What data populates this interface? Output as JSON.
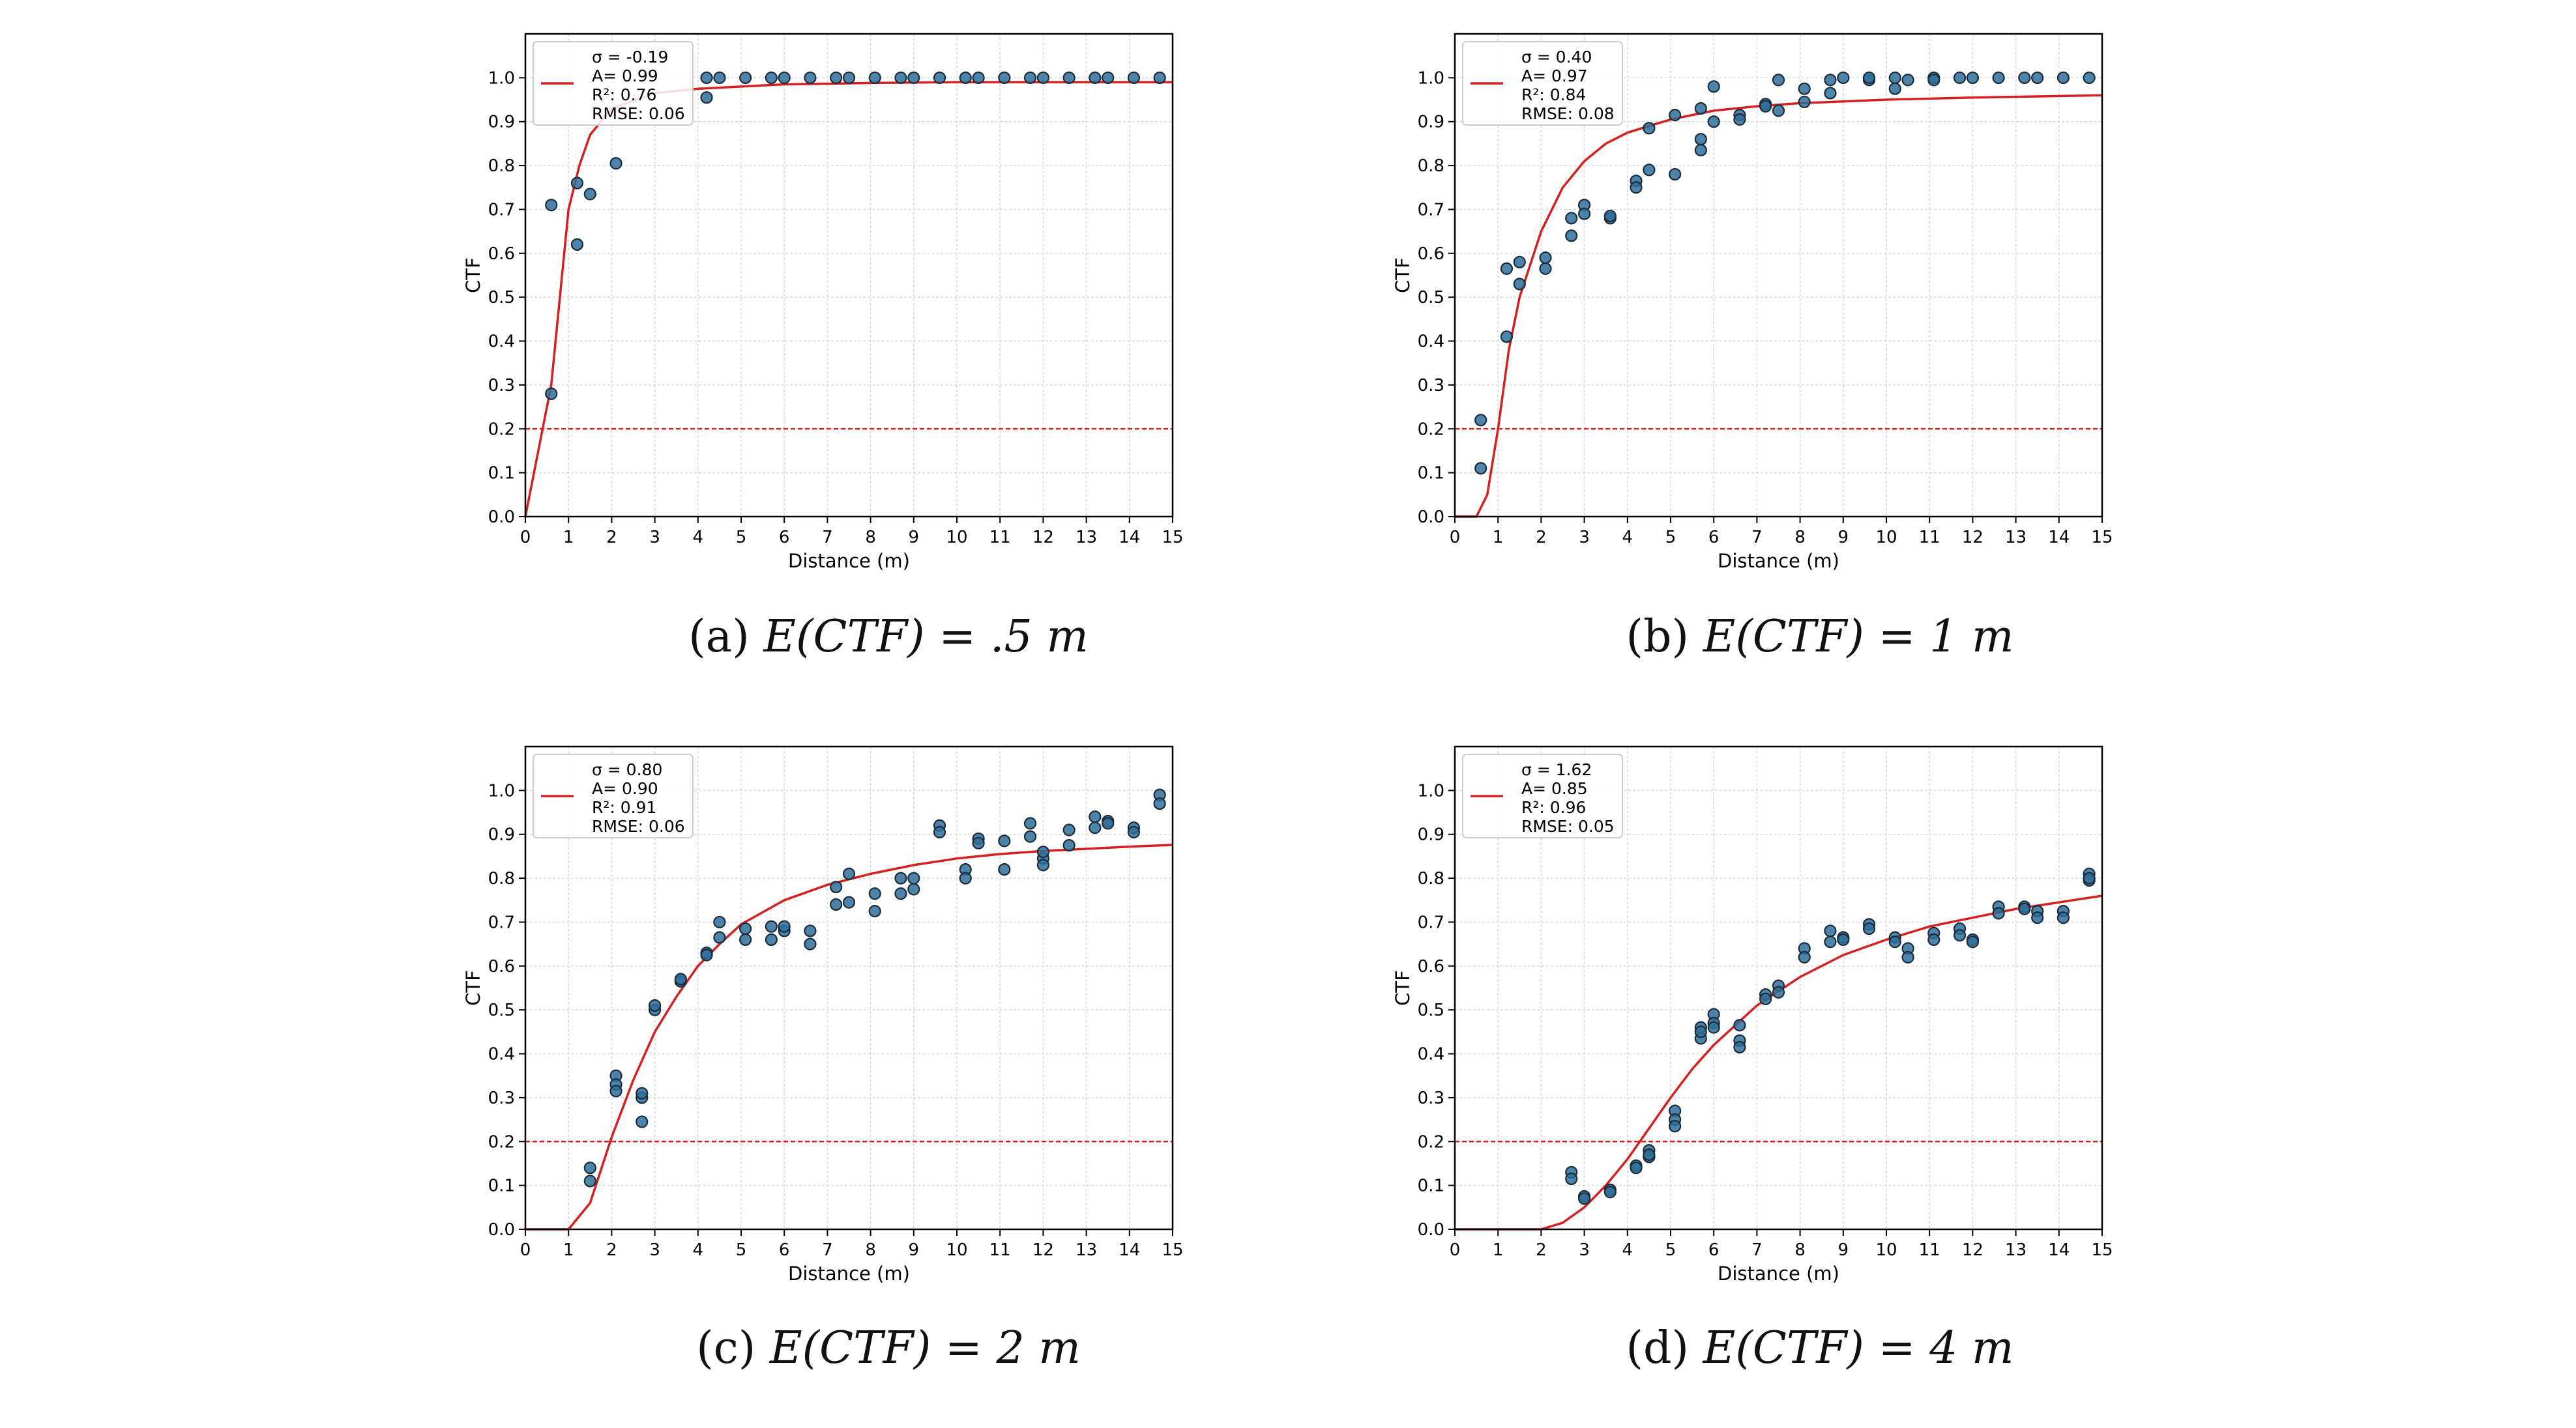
{
  "panels": [
    {
      "caption_tag": "(a)",
      "caption_expr": "E(CTF) = .5 m",
      "chart_data": {
        "type": "scatter",
        "xlabel": "Distance (m)",
        "ylabel": "CTF",
        "xlim": [
          0,
          15
        ],
        "ylim": [
          0,
          1.1
        ],
        "xticks": [
          0,
          1,
          2,
          3,
          4,
          5,
          6,
          7,
          8,
          9,
          10,
          11,
          12,
          13,
          14,
          15
        ],
        "yticks": [
          0.0,
          0.1,
          0.2,
          0.3,
          0.4,
          0.5,
          0.6,
          0.7,
          0.8,
          0.9,
          1.0
        ],
        "grid": true,
        "legend_position": "top-left",
        "legend_lines": [
          "σ = -0.19",
          "A= 0.99",
          "R²: 0.76",
          "RMSE: 0.06"
        ],
        "threshold": 0.2,
        "colors": {
          "fit": "#d62020",
          "points": "#2f6f9a",
          "point_edge": "#1a2b3a",
          "threshold": "#d62020"
        },
        "fit_curve": {
          "x": [
            0,
            0.6,
            1.0,
            1.25,
            1.5,
            2,
            3,
            4,
            6,
            8,
            10,
            12,
            15
          ],
          "y": [
            0,
            0.3,
            0.7,
            0.8,
            0.87,
            0.93,
            0.965,
            0.975,
            0.985,
            0.988,
            0.99,
            0.99,
            0.99
          ]
        },
        "points": [
          [
            0.6,
            0.28
          ],
          [
            0.6,
            0.71
          ],
          [
            1.2,
            0.76
          ],
          [
            1.2,
            0.62
          ],
          [
            1.5,
            0.735
          ],
          [
            2.1,
            0.805
          ],
          [
            4.2,
            0.955
          ],
          [
            4.2,
            1.0
          ],
          [
            4.5,
            1.0
          ],
          [
            5.1,
            1.0
          ],
          [
            5.7,
            1.0
          ],
          [
            6.0,
            1.0
          ],
          [
            6.6,
            1.0
          ],
          [
            7.2,
            1.0
          ],
          [
            7.5,
            1.0
          ],
          [
            8.1,
            1.0
          ],
          [
            8.7,
            1.0
          ],
          [
            9.0,
            1.0
          ],
          [
            9.6,
            1.0
          ],
          [
            10.2,
            1.0
          ],
          [
            10.5,
            1.0
          ],
          [
            11.1,
            1.0
          ],
          [
            11.7,
            1.0
          ],
          [
            12.0,
            1.0
          ],
          [
            12.6,
            1.0
          ],
          [
            13.2,
            1.0
          ],
          [
            13.5,
            1.0
          ],
          [
            14.1,
            1.0
          ],
          [
            14.7,
            1.0
          ]
        ]
      }
    },
    {
      "caption_tag": "(b)",
      "caption_expr": "E(CTF) = 1 m",
      "chart_data": {
        "type": "scatter",
        "xlabel": "Distance (m)",
        "ylabel": "CTF",
        "xlim": [
          0,
          15
        ],
        "ylim": [
          0,
          1.1
        ],
        "xticks": [
          0,
          1,
          2,
          3,
          4,
          5,
          6,
          7,
          8,
          9,
          10,
          11,
          12,
          13,
          14,
          15
        ],
        "yticks": [
          0.0,
          0.1,
          0.2,
          0.3,
          0.4,
          0.5,
          0.6,
          0.7,
          0.8,
          0.9,
          1.0
        ],
        "grid": true,
        "legend_position": "top-left",
        "legend_lines": [
          "σ = 0.40",
          "A= 0.97",
          "R²: 0.84",
          "RMSE: 0.08"
        ],
        "threshold": 0.2,
        "colors": {
          "fit": "#d62020",
          "points": "#2f6f9a",
          "point_edge": "#1a2b3a",
          "threshold": "#d62020"
        },
        "fit_curve": {
          "x": [
            0,
            0.5,
            0.75,
            1.0,
            1.25,
            1.5,
            2,
            2.5,
            3,
            3.5,
            4,
            5,
            6,
            7,
            8,
            10,
            12,
            15
          ],
          "y": [
            0,
            0,
            0.05,
            0.2,
            0.38,
            0.5,
            0.65,
            0.75,
            0.81,
            0.85,
            0.875,
            0.905,
            0.925,
            0.935,
            0.942,
            0.95,
            0.955,
            0.96
          ]
        },
        "points": [
          [
            0.6,
            0.22
          ],
          [
            0.6,
            0.11
          ],
          [
            1.2,
            0.41
          ],
          [
            1.2,
            0.565
          ],
          [
            1.5,
            0.58
          ],
          [
            1.5,
            0.53
          ],
          [
            2.1,
            0.59
          ],
          [
            2.1,
            0.565
          ],
          [
            2.7,
            0.68
          ],
          [
            2.7,
            0.64
          ],
          [
            3.0,
            0.71
          ],
          [
            3.0,
            0.69
          ],
          [
            3.6,
            0.68
          ],
          [
            3.6,
            0.685
          ],
          [
            4.2,
            0.765
          ],
          [
            4.2,
            0.75
          ],
          [
            4.5,
            0.79
          ],
          [
            4.5,
            0.885
          ],
          [
            5.1,
            0.915
          ],
          [
            5.1,
            0.78
          ],
          [
            5.7,
            0.93
          ],
          [
            5.7,
            0.86
          ],
          [
            5.7,
            0.835
          ],
          [
            6.0,
            0.98
          ],
          [
            6.0,
            0.9
          ],
          [
            6.6,
            0.915
          ],
          [
            6.6,
            0.905
          ],
          [
            7.2,
            0.94
          ],
          [
            7.2,
            0.935
          ],
          [
            7.5,
            0.925
          ],
          [
            7.5,
            0.995
          ],
          [
            8.1,
            0.975
          ],
          [
            8.1,
            0.945
          ],
          [
            8.7,
            0.995
          ],
          [
            8.7,
            0.965
          ],
          [
            9.0,
            1.0
          ],
          [
            9.6,
            0.995
          ],
          [
            9.6,
            1.0
          ],
          [
            10.2,
            0.975
          ],
          [
            10.2,
            1.0
          ],
          [
            10.5,
            0.995
          ],
          [
            11.1,
            1.0
          ],
          [
            11.1,
            0.995
          ],
          [
            11.7,
            1.0
          ],
          [
            12.0,
            1.0
          ],
          [
            12.6,
            1.0
          ],
          [
            13.2,
            1.0
          ],
          [
            13.5,
            1.0
          ],
          [
            14.1,
            1.0
          ],
          [
            14.7,
            1.0
          ]
        ]
      }
    },
    {
      "caption_tag": "(c)",
      "caption_expr": "E(CTF) = 2 m",
      "chart_data": {
        "type": "scatter",
        "xlabel": "Distance (m)",
        "ylabel": "CTF",
        "xlim": [
          0,
          15
        ],
        "ylim": [
          0,
          1.1
        ],
        "xticks": [
          0,
          1,
          2,
          3,
          4,
          5,
          6,
          7,
          8,
          9,
          10,
          11,
          12,
          13,
          14,
          15
        ],
        "yticks": [
          0.0,
          0.1,
          0.2,
          0.3,
          0.4,
          0.5,
          0.6,
          0.7,
          0.8,
          0.9,
          1.0
        ],
        "grid": true,
        "legend_position": "top-left",
        "legend_lines": [
          "σ = 0.80",
          "A= 0.90",
          "R²: 0.91",
          "RMSE: 0.06"
        ],
        "threshold": 0.2,
        "colors": {
          "fit": "#d62020",
          "points": "#2f6f9a",
          "point_edge": "#1a2b3a",
          "threshold": "#d62020"
        },
        "fit_curve": {
          "x": [
            0,
            1.0,
            1.5,
            2.0,
            2.5,
            3.0,
            3.5,
            4.0,
            4.5,
            5,
            6,
            7,
            8,
            9,
            10,
            11,
            12,
            13,
            14,
            15
          ],
          "y": [
            0,
            0,
            0.06,
            0.21,
            0.34,
            0.45,
            0.53,
            0.6,
            0.65,
            0.695,
            0.75,
            0.785,
            0.81,
            0.83,
            0.845,
            0.855,
            0.862,
            0.867,
            0.872,
            0.876
          ]
        },
        "points": [
          [
            1.5,
            0.14
          ],
          [
            1.5,
            0.11
          ],
          [
            2.1,
            0.35
          ],
          [
            2.1,
            0.33
          ],
          [
            2.1,
            0.315
          ],
          [
            2.7,
            0.3
          ],
          [
            2.7,
            0.31
          ],
          [
            2.7,
            0.245
          ],
          [
            3.0,
            0.5
          ],
          [
            3.0,
            0.51
          ],
          [
            3.6,
            0.565
          ],
          [
            3.6,
            0.57
          ],
          [
            4.2,
            0.63
          ],
          [
            4.2,
            0.625
          ],
          [
            4.5,
            0.7
          ],
          [
            4.5,
            0.665
          ],
          [
            5.1,
            0.685
          ],
          [
            5.1,
            0.66
          ],
          [
            5.7,
            0.69
          ],
          [
            5.7,
            0.66
          ],
          [
            6.0,
            0.68
          ],
          [
            6.0,
            0.69
          ],
          [
            6.6,
            0.68
          ],
          [
            6.6,
            0.65
          ],
          [
            7.2,
            0.78
          ],
          [
            7.2,
            0.74
          ],
          [
            7.5,
            0.81
          ],
          [
            7.5,
            0.745
          ],
          [
            8.1,
            0.765
          ],
          [
            8.1,
            0.725
          ],
          [
            8.7,
            0.8
          ],
          [
            8.7,
            0.765
          ],
          [
            9.0,
            0.8
          ],
          [
            9.0,
            0.775
          ],
          [
            9.6,
            0.92
          ],
          [
            9.6,
            0.905
          ],
          [
            10.2,
            0.82
          ],
          [
            10.2,
            0.8
          ],
          [
            10.5,
            0.89
          ],
          [
            10.5,
            0.88
          ],
          [
            11.1,
            0.885
          ],
          [
            11.1,
            0.82
          ],
          [
            11.7,
            0.925
          ],
          [
            11.7,
            0.895
          ],
          [
            12.0,
            0.845
          ],
          [
            12.0,
            0.83
          ],
          [
            12.0,
            0.86
          ],
          [
            12.6,
            0.91
          ],
          [
            12.6,
            0.875
          ],
          [
            13.2,
            0.94
          ],
          [
            13.2,
            0.915
          ],
          [
            13.5,
            0.93
          ],
          [
            13.5,
            0.925
          ],
          [
            14.1,
            0.915
          ],
          [
            14.1,
            0.905
          ],
          [
            14.7,
            0.99
          ],
          [
            14.7,
            0.97
          ]
        ]
      }
    },
    {
      "caption_tag": "(d)",
      "caption_expr": "E(CTF) = 4 m",
      "chart_data": {
        "type": "scatter",
        "xlabel": "Distance (m)",
        "ylabel": "CTF",
        "xlim": [
          0,
          15
        ],
        "ylim": [
          0,
          1.1
        ],
        "xticks": [
          0,
          1,
          2,
          3,
          4,
          5,
          6,
          7,
          8,
          9,
          10,
          11,
          12,
          13,
          14,
          15
        ],
        "yticks": [
          0.0,
          0.1,
          0.2,
          0.3,
          0.4,
          0.5,
          0.6,
          0.7,
          0.8,
          0.9,
          1.0
        ],
        "grid": true,
        "legend_position": "top-left",
        "legend_lines": [
          "σ = 1.62",
          "A= 0.85",
          "R²: 0.96",
          "RMSE: 0.05"
        ],
        "threshold": 0.2,
        "colors": {
          "fit": "#d62020",
          "points": "#2f6f9a",
          "point_edge": "#1a2b3a",
          "threshold": "#d62020"
        },
        "fit_curve": {
          "x": [
            0,
            2.0,
            2.5,
            3.0,
            3.5,
            4.0,
            4.5,
            5,
            5.5,
            6,
            6.5,
            7,
            8,
            9,
            10,
            11,
            12,
            13,
            14,
            15
          ],
          "y": [
            0,
            0,
            0.015,
            0.05,
            0.1,
            0.16,
            0.23,
            0.3,
            0.365,
            0.42,
            0.465,
            0.51,
            0.575,
            0.625,
            0.66,
            0.69,
            0.71,
            0.73,
            0.745,
            0.76
          ]
        },
        "points": [
          [
            2.7,
            0.13
          ],
          [
            2.7,
            0.115
          ],
          [
            3.0,
            0.075
          ],
          [
            3.0,
            0.07
          ],
          [
            3.6,
            0.09
          ],
          [
            3.6,
            0.085
          ],
          [
            4.2,
            0.145
          ],
          [
            4.2,
            0.14
          ],
          [
            4.5,
            0.18
          ],
          [
            4.5,
            0.165
          ],
          [
            4.5,
            0.17
          ],
          [
            5.1,
            0.27
          ],
          [
            5.1,
            0.25
          ],
          [
            5.1,
            0.235
          ],
          [
            5.7,
            0.46
          ],
          [
            5.7,
            0.435
          ],
          [
            5.7,
            0.45
          ],
          [
            6.0,
            0.49
          ],
          [
            6.0,
            0.47
          ],
          [
            6.0,
            0.46
          ],
          [
            6.6,
            0.465
          ],
          [
            6.6,
            0.43
          ],
          [
            6.6,
            0.415
          ],
          [
            7.2,
            0.535
          ],
          [
            7.2,
            0.525
          ],
          [
            7.5,
            0.555
          ],
          [
            7.5,
            0.54
          ],
          [
            8.1,
            0.64
          ],
          [
            8.1,
            0.62
          ],
          [
            8.7,
            0.68
          ],
          [
            8.7,
            0.655
          ],
          [
            9.0,
            0.665
          ],
          [
            9.0,
            0.66
          ],
          [
            9.6,
            0.695
          ],
          [
            9.6,
            0.685
          ],
          [
            10.2,
            0.665
          ],
          [
            10.2,
            0.655
          ],
          [
            10.5,
            0.64
          ],
          [
            10.5,
            0.62
          ],
          [
            11.1,
            0.675
          ],
          [
            11.1,
            0.66
          ],
          [
            11.7,
            0.685
          ],
          [
            11.7,
            0.67
          ],
          [
            12.0,
            0.66
          ],
          [
            12.0,
            0.655
          ],
          [
            12.6,
            0.735
          ],
          [
            12.6,
            0.72
          ],
          [
            13.2,
            0.735
          ],
          [
            13.2,
            0.73
          ],
          [
            13.5,
            0.725
          ],
          [
            13.5,
            0.71
          ],
          [
            14.1,
            0.725
          ],
          [
            14.1,
            0.71
          ],
          [
            14.7,
            0.81
          ],
          [
            14.7,
            0.795
          ],
          [
            14.7,
            0.8
          ]
        ]
      }
    }
  ]
}
